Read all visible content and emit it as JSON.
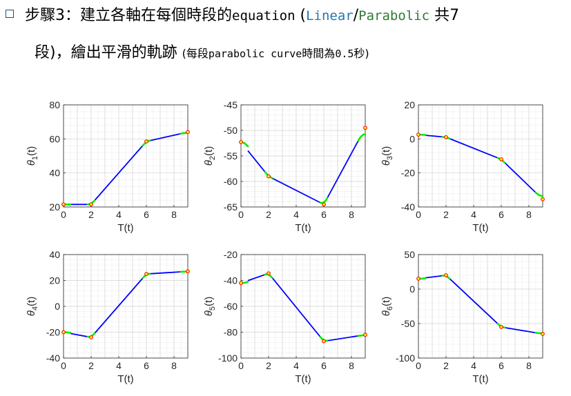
{
  "heading": {
    "prefix": "步驟3：建立各軸在每個時段的",
    "equation_word": "equation",
    "paren_open": " (",
    "linear": "Linear",
    "slash": "/",
    "parabolic": "Parabolic",
    "tail": " 共7",
    "line2_main": "段)，繪出平滑的軌跡 ",
    "line2_small_a": "(每段",
    "line2_small_b": "parabolic curve",
    "line2_small_c": "時間為",
    "line2_small_d": "0.5",
    "line2_small_e": "秒)"
  },
  "colors": {
    "linear": "#0000ff",
    "parabolic": "#00ee00",
    "via": "#ff0000",
    "via_fill": "#ffff00"
  },
  "chart_data": [
    {
      "type": "line",
      "xlabel": "T(t)",
      "ylabel_sym": "θ",
      "ylabel_sub": "1",
      "ylabel_tail": "(t)",
      "xlim": [
        0,
        9
      ],
      "ylim": [
        20,
        80
      ],
      "xticks": [
        0,
        2,
        4,
        6,
        8
      ],
      "yticks": [
        20,
        40,
        60,
        80
      ],
      "grid": true,
      "points": {
        "t": [
          0,
          2,
          6,
          9
        ],
        "y": [
          21.5,
          21.5,
          58.5,
          64.0
        ]
      }
    },
    {
      "type": "line",
      "xlabel": "T(t)",
      "ylabel_sym": "θ",
      "ylabel_sub": "2",
      "ylabel_tail": "(t)",
      "xlim": [
        0,
        9
      ],
      "ylim": [
        -65,
        -45
      ],
      "xticks": [
        0,
        2,
        4,
        6,
        8
      ],
      "yticks": [
        -65,
        -60,
        -55,
        -50,
        -45
      ],
      "grid": true,
      "points": {
        "t": [
          0,
          2,
          6,
          9
        ],
        "y": [
          -52.3,
          -59.0,
          -64.5,
          -49.5
        ]
      }
    },
    {
      "type": "line",
      "xlabel": "T(t)",
      "ylabel_sym": "θ",
      "ylabel_sub": "3",
      "ylabel_tail": "(t)",
      "xlim": [
        0,
        9
      ],
      "ylim": [
        -40,
        20
      ],
      "xticks": [
        0,
        2,
        4,
        6,
        8
      ],
      "yticks": [
        -40,
        -20,
        0,
        20
      ],
      "grid": true,
      "points": {
        "t": [
          0,
          2,
          6,
          9
        ],
        "y": [
          2.5,
          1.0,
          -12.0,
          -35.5
        ]
      }
    },
    {
      "type": "line",
      "xlabel": "T(t)",
      "ylabel_sym": "θ",
      "ylabel_sub": "4",
      "ylabel_tail": "(t)",
      "xlim": [
        0,
        9
      ],
      "ylim": [
        -40,
        40
      ],
      "xticks": [
        0,
        2,
        4,
        6,
        8
      ],
      "yticks": [
        -40,
        -20,
        0,
        20,
        40
      ],
      "grid": true,
      "points": {
        "t": [
          0,
          2,
          6,
          9
        ],
        "y": [
          -20.0,
          -24.0,
          25.0,
          27.0
        ]
      }
    },
    {
      "type": "line",
      "xlabel": "T(t)",
      "ylabel_sym": "θ",
      "ylabel_sub": "5",
      "ylabel_tail": "(t)",
      "xlim": [
        0,
        9
      ],
      "ylim": [
        -100,
        -20
      ],
      "xticks": [
        0,
        2,
        4,
        6,
        8
      ],
      "yticks": [
        -100,
        -80,
        -60,
        -40,
        -20
      ],
      "grid": true,
      "points": {
        "t": [
          0,
          2,
          6,
          9
        ],
        "y": [
          -42.0,
          -34.5,
          -87.0,
          -82.0
        ]
      }
    },
    {
      "type": "line",
      "xlabel": "T(t)",
      "ylabel_sym": "θ",
      "ylabel_sub": "6",
      "ylabel_tail": "(t)",
      "xlim": [
        0,
        9
      ],
      "ylim": [
        -100,
        50
      ],
      "xticks": [
        0,
        2,
        4,
        6,
        8
      ],
      "yticks": [
        -100,
        -50,
        0,
        50
      ],
      "grid": true,
      "points": {
        "t": [
          0,
          2,
          6,
          9
        ],
        "y": [
          15.0,
          20.0,
          -55.0,
          -65.0
        ]
      }
    }
  ]
}
